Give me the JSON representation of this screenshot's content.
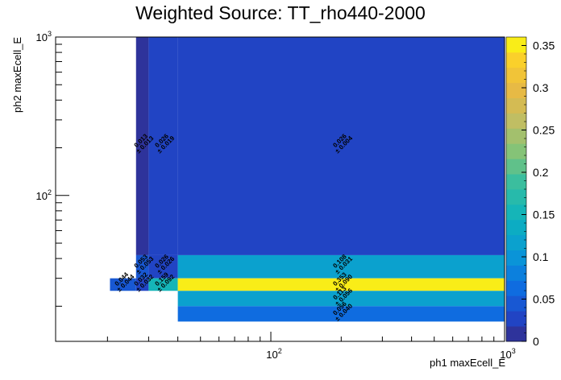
{
  "chart_data": {
    "type": "heatmap",
    "title": "Weighted Source: TT_rho440-2000",
    "xlabel": "ph1 maxEcell_E",
    "ylabel": "ph2 maxEcell_E",
    "x_scale": "log",
    "y_scale": "log",
    "xlim": [
      12,
      1000
    ],
    "ylim": [
      12,
      1000
    ],
    "x_tick_labels": [
      "10²",
      "10³"
    ],
    "y_tick_labels": [
      "10²",
      "10³"
    ],
    "colorbar": {
      "range": [
        0,
        0.36
      ],
      "ticks": [
        "0",
        "0.05",
        "0.1",
        "0.15",
        "0.2",
        "0.25",
        "0.3",
        "0.35"
      ]
    },
    "x_edges": [
      20.5,
      26.5,
      30,
      40,
      1000
    ],
    "y_edges": [
      12,
      16,
      20,
      25,
      30,
      42,
      1000
    ],
    "cells": [
      {
        "xi": 1,
        "yi": 5,
        "value": 0.013,
        "error": 0.013
      },
      {
        "xi": 2,
        "yi": 5,
        "value": 0.026,
        "error": 0.019
      },
      {
        "xi": 3,
        "yi": 5,
        "value": 0.026,
        "error": 0.004
      },
      {
        "xi": 1,
        "yi": 4,
        "value": 0.053,
        "error": 0.053
      },
      {
        "xi": 2,
        "yi": 4,
        "value": 0.026,
        "error": 0.026
      },
      {
        "xi": 3,
        "yi": 4,
        "value": 0.108,
        "error": 0.031
      },
      {
        "xi": 0,
        "yi": 3,
        "value": 0.044,
        "error": 0.044
      },
      {
        "xi": 1,
        "yi": 3,
        "value": 0.032,
        "error": 0.032
      },
      {
        "xi": 2,
        "yi": 3,
        "value": 0.159,
        "error": 0.092
      },
      {
        "xi": 3,
        "yi": 3,
        "value": 0.353,
        "error": 0.09
      },
      {
        "xi": 3,
        "yi": 2,
        "value": 0.113,
        "error": 0.056
      },
      {
        "xi": 3,
        "yi": 1,
        "value": 0.056,
        "error": 0.04
      }
    ]
  }
}
